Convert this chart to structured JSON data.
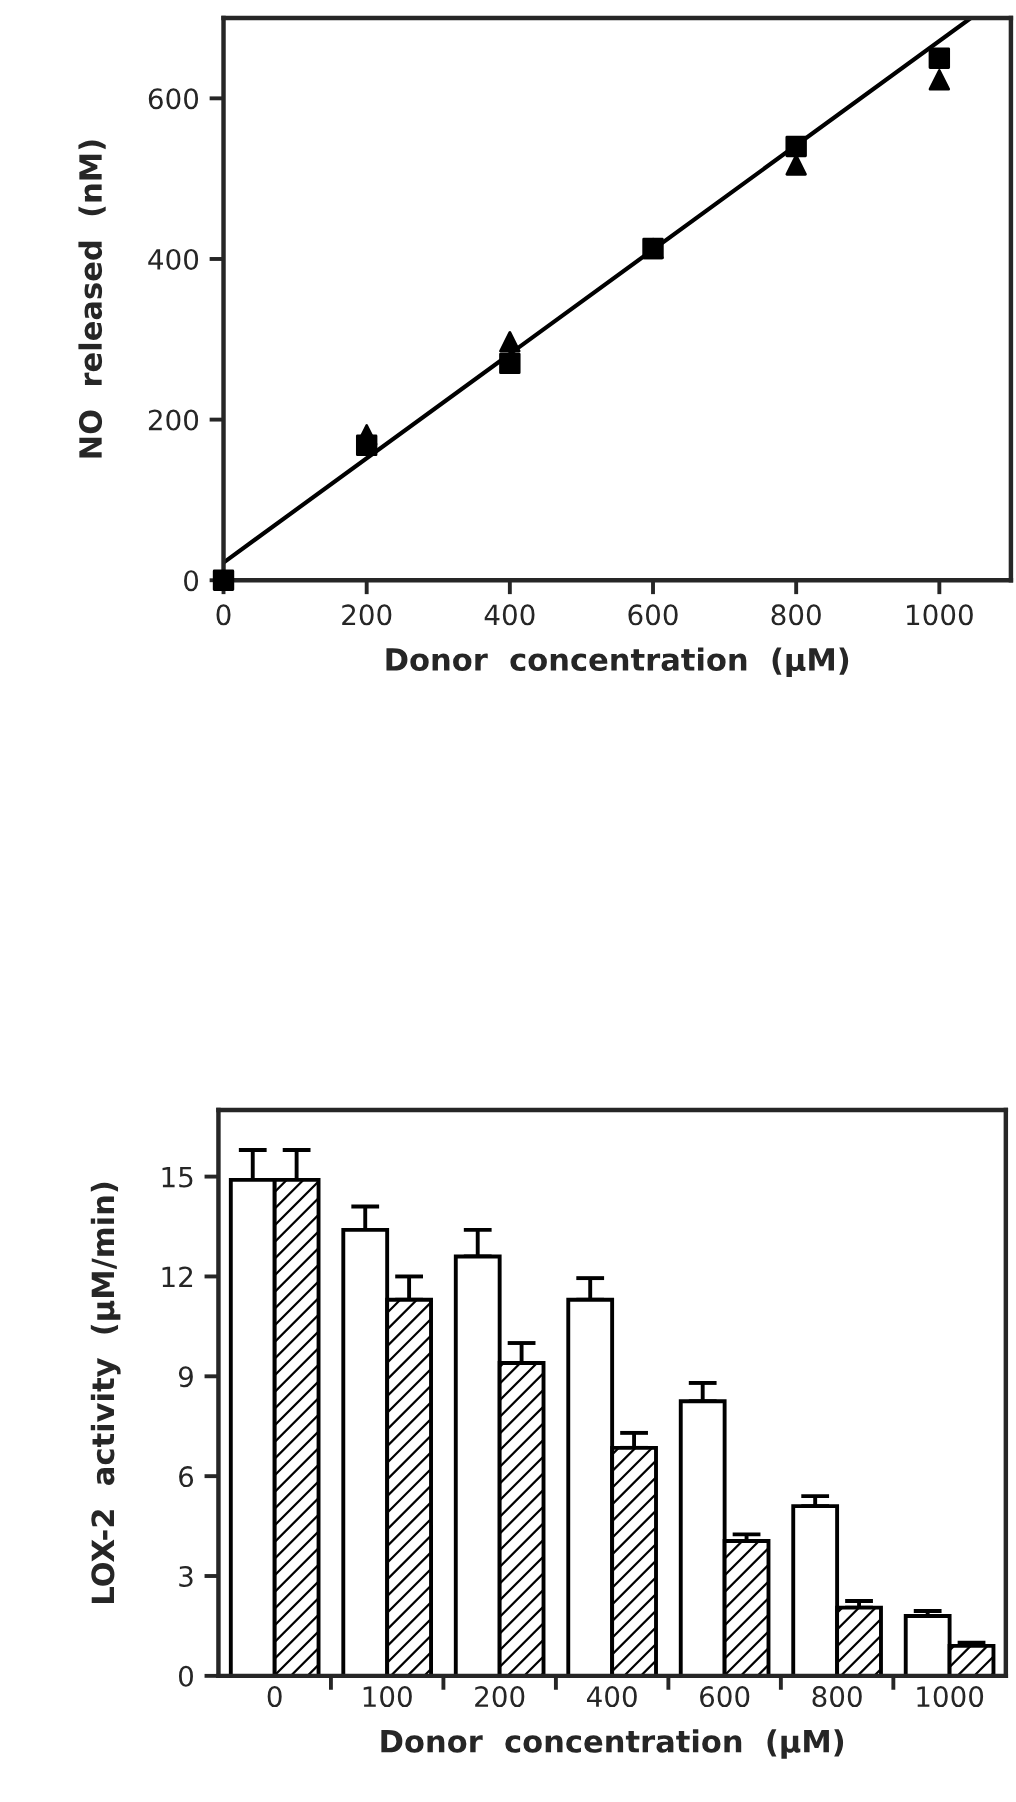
{
  "chart_data": [
    {
      "type": "scatter",
      "xlabel": "Donor  concentration  (μM)",
      "ylabel": "NO  released  (nM)",
      "xlim": [
        0,
        1100
      ],
      "ylim": [
        0,
        700
      ],
      "xticks": [
        0,
        200,
        400,
        600,
        800,
        1000
      ],
      "yticks": [
        0,
        200,
        400,
        600
      ],
      "grid": false,
      "legend": false,
      "series": [
        {
          "type": "scatter",
          "marker": "square",
          "color": "#000000",
          "x": [
            0,
            200,
            400,
            600,
            800,
            1000
          ],
          "values": [
            0,
            168,
            270,
            413,
            540,
            650
          ]
        },
        {
          "type": "scatter",
          "marker": "triangle",
          "color": "#000000",
          "x": [
            200,
            400,
            600,
            800,
            1000
          ],
          "values": [
            181,
            297,
            413,
            517,
            623
          ]
        },
        {
          "type": "line",
          "color": "#000000",
          "x": [
            0,
            1044
          ],
          "values": [
            22,
            700
          ]
        }
      ]
    },
    {
      "type": "bar",
      "xlabel": "Donor  concentration  (μM)",
      "ylabel": "LOX-2  activity  (μM/min)",
      "categories": [
        "0",
        "100",
        "200",
        "400",
        "600",
        "800",
        "1000"
      ],
      "ylim": [
        0,
        17
      ],
      "yticks": [
        0,
        3,
        6,
        9,
        12,
        15
      ],
      "grid": false,
      "legend": false,
      "series": [
        {
          "color": "#ffffff",
          "values": [
            14.9,
            13.4,
            12.6,
            11.3,
            8.25,
            5.1,
            1.8
          ],
          "errors": [
            [
              14.9,
              15.8
            ],
            [
              13.4,
              14.1
            ],
            [
              12.6,
              13.4
            ],
            [
              11.3,
              11.95
            ],
            [
              8.25,
              8.8
            ],
            [
              5.1,
              5.4
            ],
            [
              1.8,
              1.95
            ]
          ]
        },
        {
          "color": "#000000",
          "values": [
            14.9,
            11.3,
            9.4,
            6.85,
            4.05,
            2.05,
            0.9
          ],
          "errors": [
            [
              14.9,
              15.8
            ],
            [
              11.3,
              12.0
            ],
            [
              9.4,
              10.0
            ],
            [
              6.85,
              7.3
            ],
            [
              4.05,
              4.25
            ],
            [
              2.05,
              2.25
            ],
            [
              0.9,
              1.0
            ]
          ]
        }
      ]
    }
  ]
}
